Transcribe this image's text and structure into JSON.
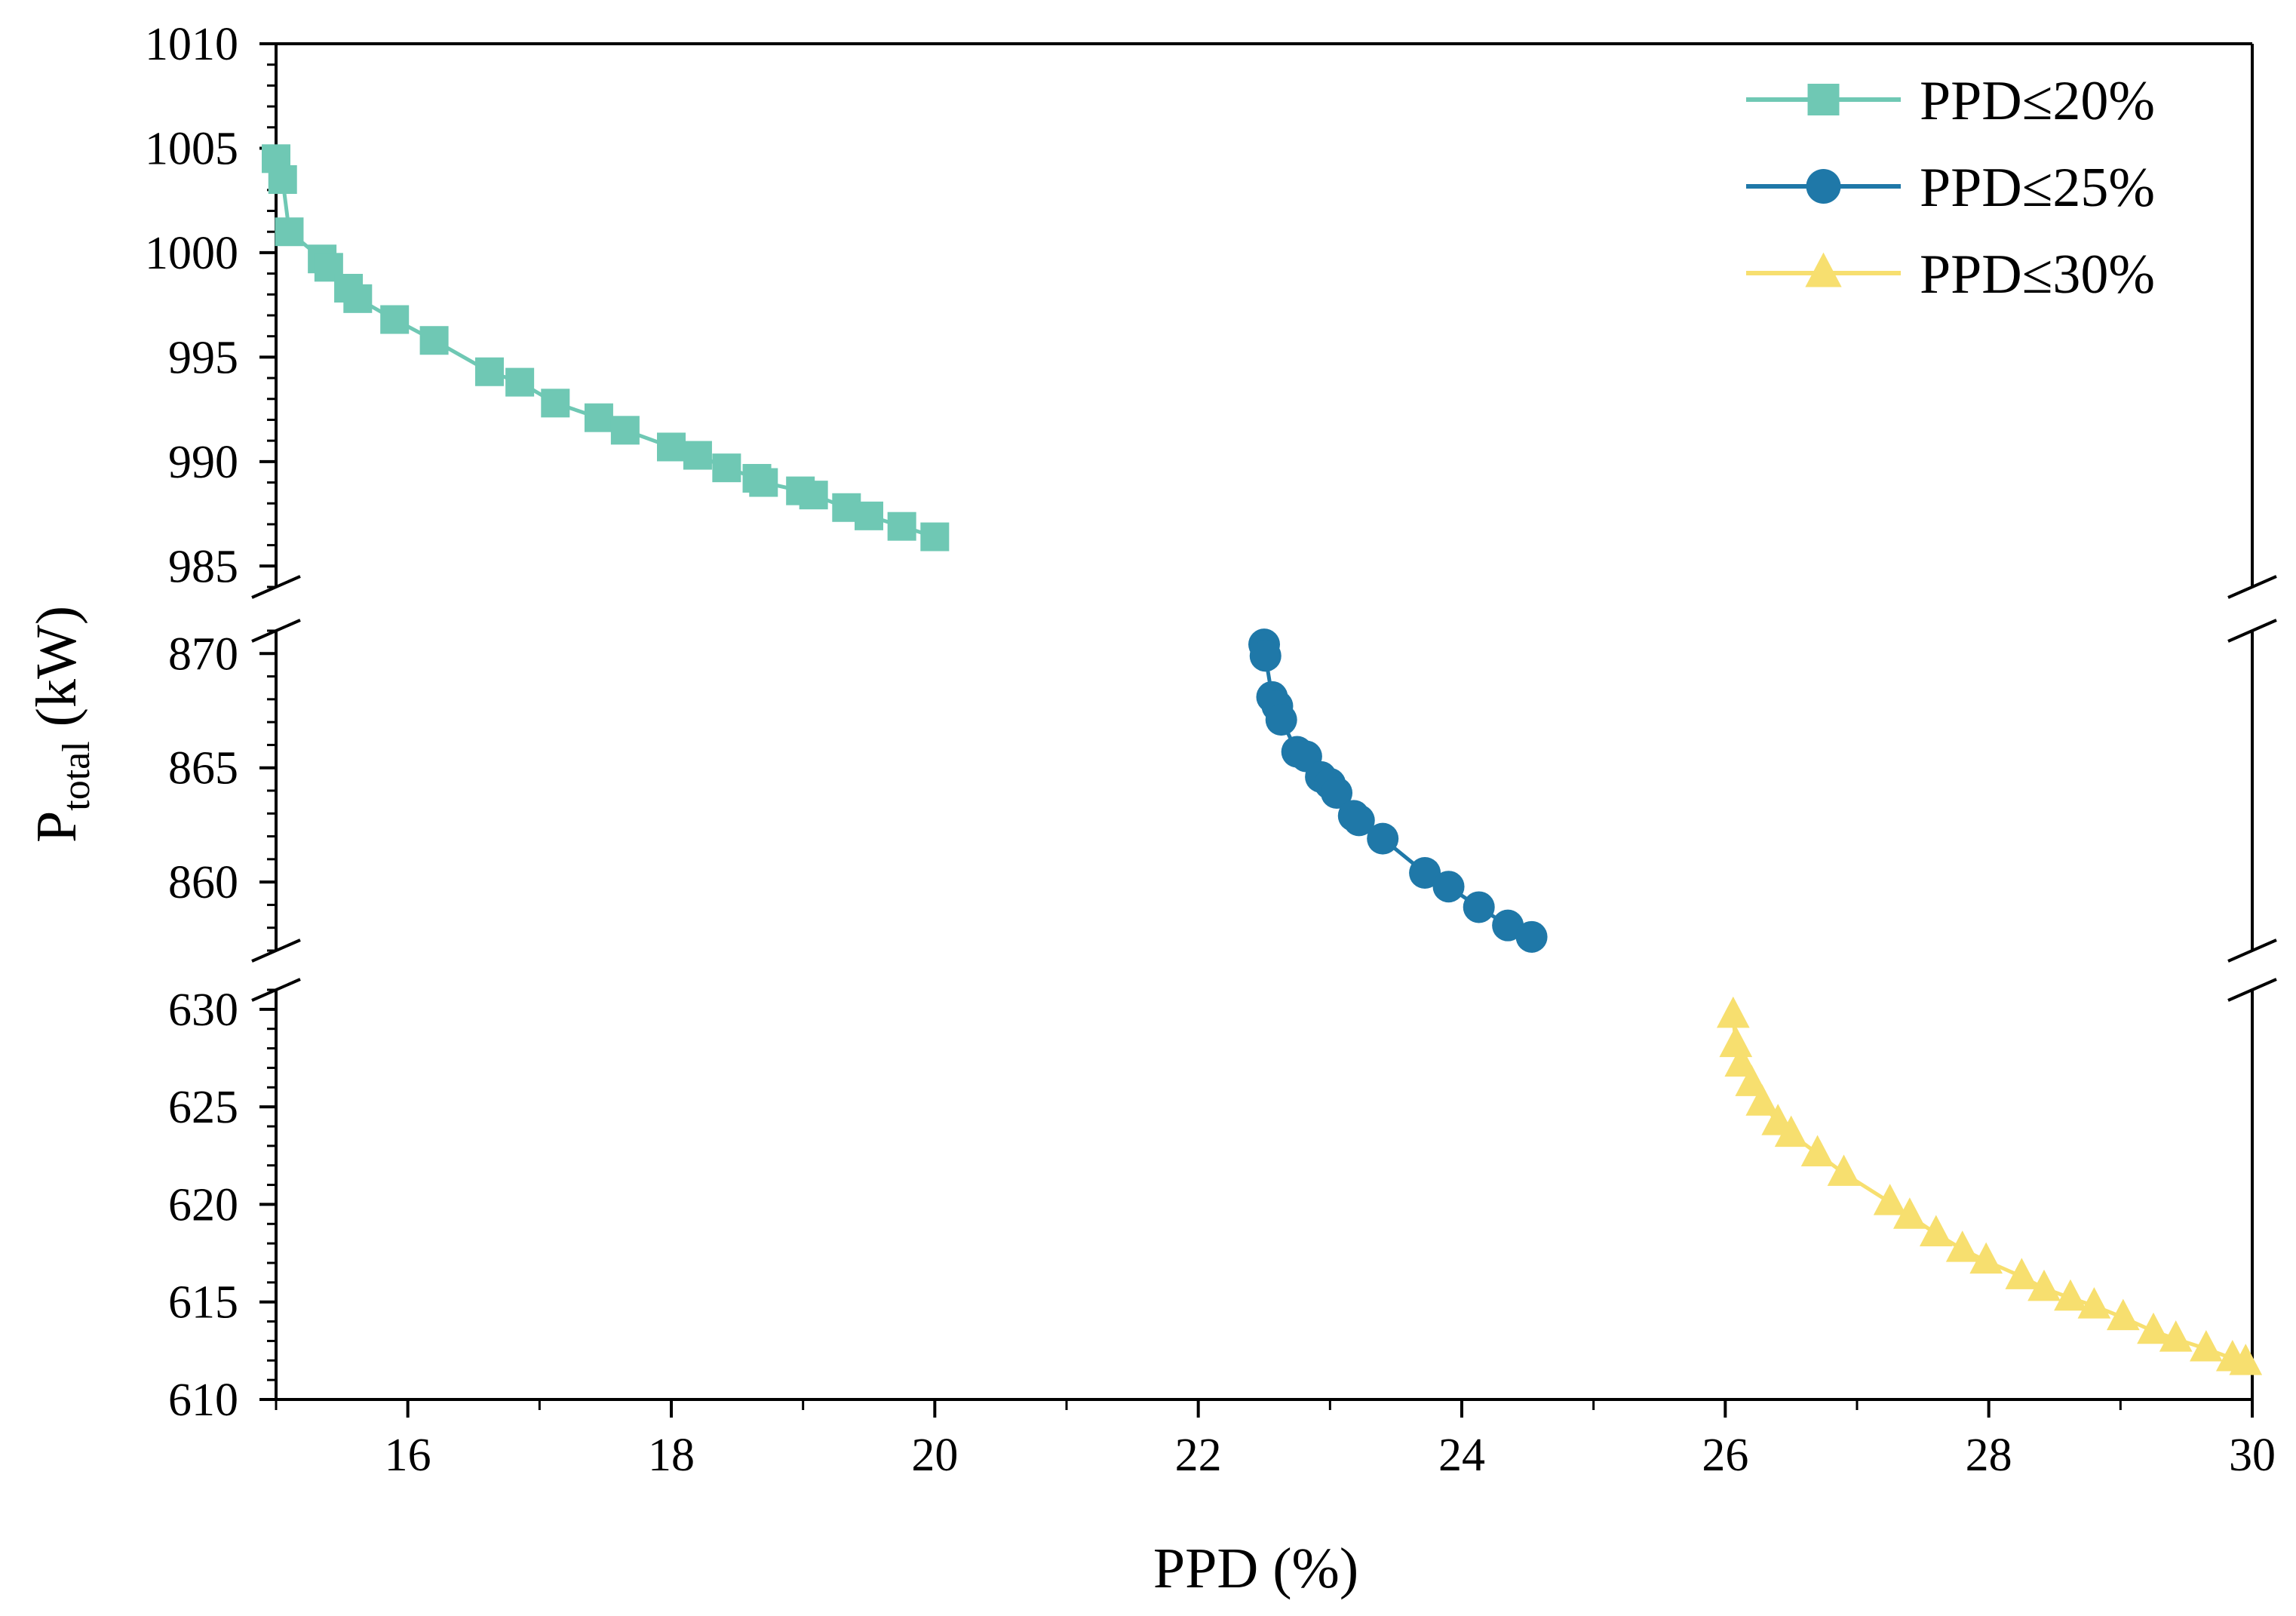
{
  "chart_data": {
    "type": "line",
    "title": "",
    "xlabel": "PPD (%)",
    "ylabel_main": "P",
    "ylabel_sub": "total",
    "ylabel_unit": " (kW)",
    "xlim": [
      15,
      30
    ],
    "x_ticks": [
      16,
      18,
      20,
      22,
      24,
      26,
      28,
      30
    ],
    "x_tick_labels": [
      "16",
      "18",
      "20",
      "22",
      "24",
      "26",
      "28",
      "30"
    ],
    "axis_segments": [
      {
        "name": "upper",
        "ylim": [
          984,
          1010
        ],
        "ticks": [
          985,
          990,
          995,
          1000,
          1005,
          1010
        ],
        "tick_labels": [
          "985",
          "990",
          "995",
          "1000",
          "1005",
          "1010"
        ]
      },
      {
        "name": "middle",
        "ylim": [
          857,
          871
        ],
        "ticks": [
          860,
          865,
          870
        ],
        "tick_labels": [
          "860",
          "865",
          "870"
        ]
      },
      {
        "name": "lower",
        "ylim": [
          610,
          631
        ],
        "ticks": [
          610,
          615,
          620,
          625,
          630
        ],
        "tick_labels": [
          "610",
          "615",
          "620",
          "625",
          "630"
        ]
      }
    ],
    "legend_position": "top-right",
    "grid": false,
    "series": [
      {
        "name": "PPD≤20%",
        "color": "#6fc8b4",
        "marker": "square",
        "segment": "upper",
        "x": [
          15.0,
          15.05,
          15.1,
          15.35,
          15.4,
          15.55,
          15.62,
          15.9,
          16.2,
          16.62,
          16.85,
          17.12,
          17.45,
          17.65,
          18.0,
          18.2,
          18.42,
          18.65,
          18.7,
          18.98,
          19.08,
          19.33,
          19.5,
          19.75,
          20.0
        ],
        "y": [
          1004.5,
          1003.5,
          1001.0,
          999.7,
          999.3,
          998.3,
          997.8,
          996.8,
          995.8,
          994.3,
          993.8,
          992.8,
          992.1,
          991.5,
          990.7,
          990.3,
          989.7,
          989.2,
          989.0,
          988.6,
          988.4,
          987.8,
          987.4,
          986.9,
          986.4
        ]
      },
      {
        "name": "PPD≤25%",
        "color": "#1f78a8",
        "marker": "circle",
        "segment": "middle",
        "x": [
          22.5,
          22.51,
          22.56,
          22.6,
          22.63,
          22.75,
          22.82,
          22.93,
          23.0,
          23.05,
          23.18,
          23.22,
          23.4,
          23.72,
          23.9,
          24.13,
          24.35,
          24.53
        ],
        "y": [
          870.4,
          869.9,
          868.1,
          867.7,
          867.1,
          865.7,
          865.5,
          864.6,
          864.3,
          863.9,
          862.9,
          862.7,
          861.9,
          860.4,
          859.8,
          858.9,
          858.1,
          857.6
        ]
      },
      {
        "name": "PPD≤30%",
        "color": "#f7df6f",
        "marker": "triangle",
        "segment": "lower",
        "x": [
          26.06,
          26.08,
          26.12,
          26.2,
          26.28,
          26.4,
          26.5,
          26.7,
          26.9,
          27.25,
          27.4,
          27.6,
          27.8,
          27.98,
          28.25,
          28.42,
          28.62,
          28.8,
          29.02,
          29.25,
          29.42,
          29.65,
          29.85,
          29.95
        ],
        "y": [
          629.7,
          628.2,
          627.2,
          626.2,
          625.2,
          624.2,
          623.6,
          622.6,
          621.6,
          620.1,
          619.4,
          618.5,
          617.7,
          617.1,
          616.3,
          615.7,
          615.2,
          614.8,
          614.2,
          613.5,
          613.1,
          612.6,
          612.1,
          611.9
        ]
      }
    ]
  }
}
